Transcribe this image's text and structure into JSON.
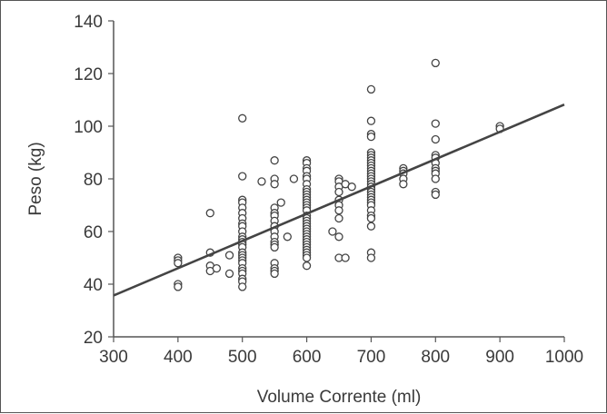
{
  "chart_data": {
    "type": "scatter",
    "title": "",
    "xlabel": "Volume Corrente  (ml)",
    "ylabel": "Peso (kg)",
    "xlim": [
      300,
      1000
    ],
    "ylim": [
      20,
      140
    ],
    "x_ticks": [
      300,
      400,
      500,
      600,
      700,
      800,
      900,
      1000
    ],
    "y_ticks": [
      20,
      40,
      60,
      80,
      100,
      120,
      140
    ],
    "grid": false,
    "legend": "none",
    "colors": {
      "axis": "#555555",
      "marker": "#444444",
      "line": "#444444"
    },
    "series": [
      {
        "marker": "open-circle",
        "points": [
          [
            400,
            50
          ],
          [
            400,
            49
          ],
          [
            400,
            48
          ],
          [
            400,
            40
          ],
          [
            400,
            39
          ],
          [
            450,
            67
          ],
          [
            450,
            52
          ],
          [
            450,
            47
          ],
          [
            450,
            45
          ],
          [
            460,
            46
          ],
          [
            480,
            51
          ],
          [
            480,
            44
          ],
          [
            500,
            103
          ],
          [
            500,
            81
          ],
          [
            500,
            72
          ],
          [
            500,
            71
          ],
          [
            500,
            69
          ],
          [
            500,
            67
          ],
          [
            500,
            65
          ],
          [
            500,
            63
          ],
          [
            500,
            62
          ],
          [
            500,
            60
          ],
          [
            500,
            58
          ],
          [
            500,
            57
          ],
          [
            500,
            56
          ],
          [
            500,
            55
          ],
          [
            500,
            54
          ],
          [
            500,
            52
          ],
          [
            500,
            51
          ],
          [
            500,
            50
          ],
          [
            500,
            49
          ],
          [
            500,
            48
          ],
          [
            500,
            46
          ],
          [
            500,
            45
          ],
          [
            500,
            44
          ],
          [
            500,
            42
          ],
          [
            500,
            41
          ],
          [
            500,
            39
          ],
          [
            530,
            79
          ],
          [
            550,
            87
          ],
          [
            550,
            80
          ],
          [
            550,
            78
          ],
          [
            550,
            69
          ],
          [
            550,
            67
          ],
          [
            550,
            66
          ],
          [
            550,
            64
          ],
          [
            550,
            62
          ],
          [
            550,
            60
          ],
          [
            550,
            58
          ],
          [
            550,
            56
          ],
          [
            550,
            55
          ],
          [
            550,
            54
          ],
          [
            550,
            48
          ],
          [
            550,
            46
          ],
          [
            550,
            45
          ],
          [
            550,
            44
          ],
          [
            560,
            71
          ],
          [
            570,
            58
          ],
          [
            580,
            80
          ],
          [
            600,
            87
          ],
          [
            600,
            86
          ],
          [
            600,
            84
          ],
          [
            600,
            83
          ],
          [
            600,
            81
          ],
          [
            600,
            80
          ],
          [
            600,
            78
          ],
          [
            600,
            76
          ],
          [
            600,
            75
          ],
          [
            600,
            74
          ],
          [
            600,
            73
          ],
          [
            600,
            72
          ],
          [
            600,
            71
          ],
          [
            600,
            70
          ],
          [
            600,
            69
          ],
          [
            600,
            68
          ],
          [
            600,
            66
          ],
          [
            600,
            65
          ],
          [
            600,
            64
          ],
          [
            600,
            63
          ],
          [
            600,
            62
          ],
          [
            600,
            61
          ],
          [
            600,
            60
          ],
          [
            600,
            59
          ],
          [
            600,
            58
          ],
          [
            600,
            57
          ],
          [
            600,
            56
          ],
          [
            600,
            55
          ],
          [
            600,
            54
          ],
          [
            600,
            53
          ],
          [
            600,
            52
          ],
          [
            600,
            51
          ],
          [
            600,
            50
          ],
          [
            600,
            47
          ],
          [
            640,
            60
          ],
          [
            650,
            80
          ],
          [
            650,
            79
          ],
          [
            650,
            77
          ],
          [
            650,
            75
          ],
          [
            650,
            72
          ],
          [
            650,
            70
          ],
          [
            650,
            68
          ],
          [
            650,
            65
          ],
          [
            650,
            58
          ],
          [
            650,
            50
          ],
          [
            660,
            78
          ],
          [
            660,
            50
          ],
          [
            670,
            77
          ],
          [
            700,
            114
          ],
          [
            700,
            102
          ],
          [
            700,
            97
          ],
          [
            700,
            96
          ],
          [
            700,
            90
          ],
          [
            700,
            89
          ],
          [
            700,
            88
          ],
          [
            700,
            87
          ],
          [
            700,
            86
          ],
          [
            700,
            85
          ],
          [
            700,
            84
          ],
          [
            700,
            83
          ],
          [
            700,
            82
          ],
          [
            700,
            81
          ],
          [
            700,
            80
          ],
          [
            700,
            79
          ],
          [
            700,
            78
          ],
          [
            700,
            77
          ],
          [
            700,
            76
          ],
          [
            700,
            75
          ],
          [
            700,
            74
          ],
          [
            700,
            73
          ],
          [
            700,
            72
          ],
          [
            700,
            71
          ],
          [
            700,
            70
          ],
          [
            700,
            68
          ],
          [
            700,
            66
          ],
          [
            700,
            65
          ],
          [
            700,
            62
          ],
          [
            700,
            52
          ],
          [
            700,
            50
          ],
          [
            750,
            84
          ],
          [
            750,
            83
          ],
          [
            750,
            82
          ],
          [
            750,
            80
          ],
          [
            750,
            78
          ],
          [
            800,
            124
          ],
          [
            800,
            101
          ],
          [
            800,
            95
          ],
          [
            800,
            89
          ],
          [
            800,
            88
          ],
          [
            800,
            86
          ],
          [
            800,
            84
          ],
          [
            800,
            83
          ],
          [
            800,
            82
          ],
          [
            800,
            80
          ],
          [
            800,
            75
          ],
          [
            800,
            74
          ],
          [
            900,
            100
          ],
          [
            900,
            99
          ]
        ]
      }
    ],
    "trendline": {
      "x": [
        300,
        1000
      ],
      "y": [
        35.7,
        108.2
      ]
    }
  }
}
